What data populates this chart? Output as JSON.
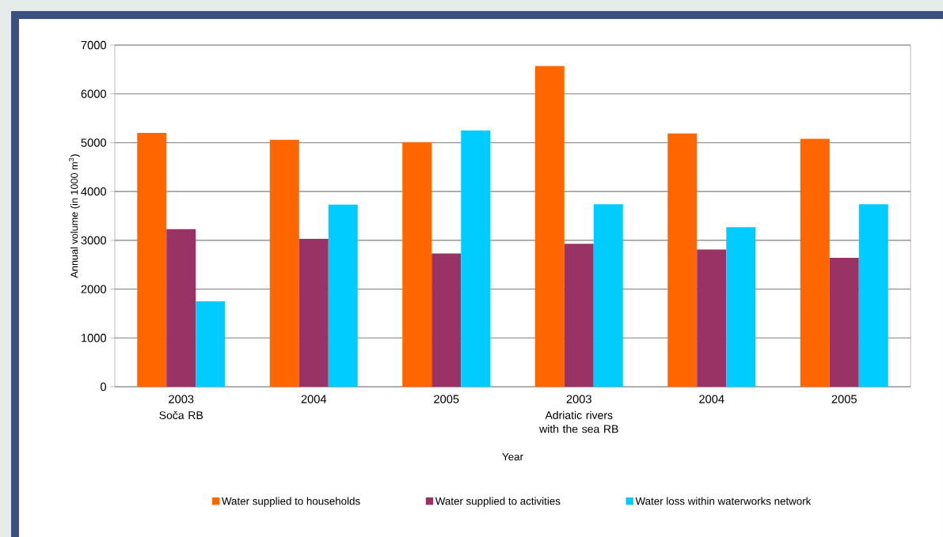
{
  "chart_data": {
    "type": "bar",
    "xlabel": "Year",
    "ylabel": "Annual volume (in 1000 m$^{3}$)",
    "categories": [
      "2003",
      "2004",
      "2005",
      "2003",
      "2004",
      "2005"
    ],
    "annotations": [
      "Soča RB",
      "Adriatic rivers with the sea RB"
    ],
    "series": [
      {
        "name": "Water supplied to households",
        "color": "#ff6600",
        "values": [
          5200,
          5060,
          5010,
          6570,
          5190,
          5080
        ]
      },
      {
        "name": "Water supplied to activities",
        "color": "#993366",
        "values": [
          3230,
          3030,
          2730,
          2930,
          2810,
          2640
        ]
      },
      {
        "name": "Water loss within waterworks network",
        "color": "#00ccff",
        "values": [
          1750,
          3730,
          5250,
          3740,
          3270,
          3740
        ]
      }
    ],
    "ylim": [
      0,
      7000
    ],
    "yticks": [
      0,
      1000,
      2000,
      3000,
      4000,
      5000,
      6000,
      7000
    ],
    "grid": "y",
    "legend": "bottom"
  }
}
